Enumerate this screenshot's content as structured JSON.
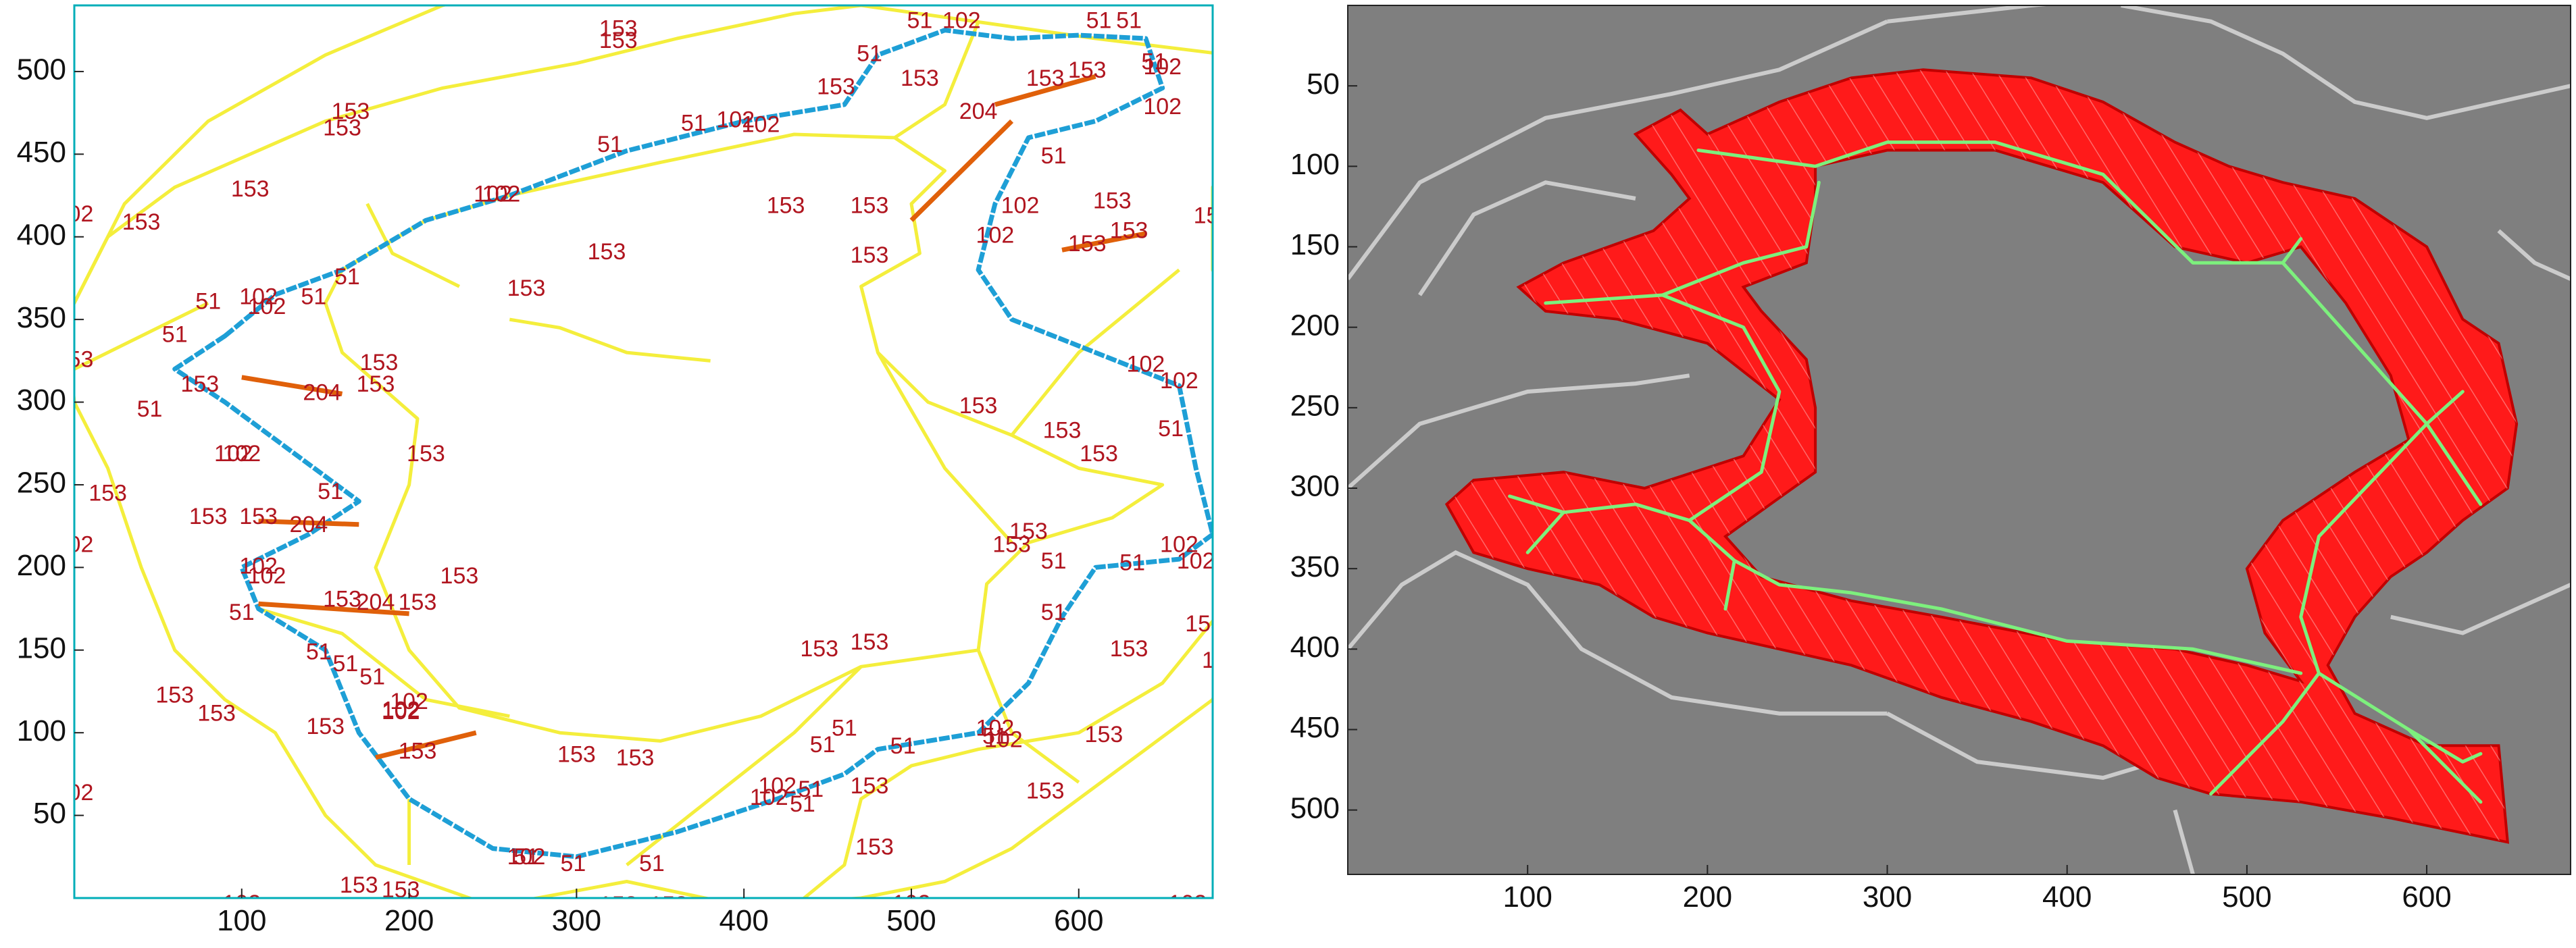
{
  "colors": {
    "background": "#ffffff",
    "left_frame": "#00aeb8",
    "left_plot_bg": "#ffffff",
    "contour_153": "#f4ee3c",
    "contour_51": "#1e9fd6",
    "contour_204": "#e0600a",
    "contour_label": "#b0151f",
    "right_plot_bg": "#7f7f7f",
    "ridge_line": "#d8d8d8",
    "fill_region": "#ff1a1a",
    "medial_axis": "#7df07d",
    "axis_text": "#111111"
  },
  "chart_data": [
    {
      "type": "contour",
      "description_panel": "left",
      "xlim": [
        0,
        680
      ],
      "ylim": [
        0,
        540
      ],
      "x_ticks": [
        "100",
        "200",
        "300",
        "400",
        "500",
        "600"
      ],
      "y_ticks": [
        "50",
        "100",
        "150",
        "200",
        "250",
        "300",
        "350",
        "400",
        "450",
        "500"
      ],
      "grid": false,
      "levels": [
        51,
        102,
        153,
        204
      ],
      "contour_labels": [
        {
          "text": "102",
          "x": 30,
          "y": 545
        },
        {
          "text": "102",
          "x": 190,
          "y": 545
        },
        {
          "text": "102",
          "x": 350,
          "y": 545
        },
        {
          "text": "153",
          "x": 325,
          "y": 525
        },
        {
          "text": "153",
          "x": 325,
          "y": 518
        },
        {
          "text": "153",
          "x": 165,
          "y": 475
        },
        {
          "text": "153",
          "x": 160,
          "y": 465
        },
        {
          "text": "51",
          "x": 475,
          "y": 510
        },
        {
          "text": "51",
          "x": 320,
          "y": 455
        },
        {
          "text": "51",
          "x": 370,
          "y": 468
        },
        {
          "text": "102",
          "x": 395,
          "y": 470
        },
        {
          "text": "102",
          "x": 410,
          "y": 467
        },
        {
          "text": "153",
          "x": 455,
          "y": 490
        },
        {
          "text": "153",
          "x": 505,
          "y": 495
        },
        {
          "text": "51",
          "x": 505,
          "y": 530
        },
        {
          "text": "102",
          "x": 530,
          "y": 530
        },
        {
          "text": "51",
          "x": 612,
          "y": 530
        },
        {
          "text": "51",
          "x": 630,
          "y": 530
        },
        {
          "text": "204",
          "x": 540,
          "y": 475
        },
        {
          "text": "153",
          "x": 580,
          "y": 495
        },
        {
          "text": "153",
          "x": 605,
          "y": 500
        },
        {
          "text": "51",
          "x": 645,
          "y": 505
        },
        {
          "text": "102",
          "x": 650,
          "y": 502
        },
        {
          "text": "102",
          "x": 650,
          "y": 478
        },
        {
          "text": "153",
          "x": 690,
          "y": 520
        },
        {
          "text": "153",
          "x": 105,
          "y": 428
        },
        {
          "text": "153",
          "x": 40,
          "y": 408
        },
        {
          "text": "102",
          "x": 0,
          "y": 413
        },
        {
          "text": "102",
          "x": 250,
          "y": 425
        },
        {
          "text": "102",
          "x": 255,
          "y": 425
        },
        {
          "text": "153",
          "x": 425,
          "y": 418
        },
        {
          "text": "153",
          "x": 475,
          "y": 418
        },
        {
          "text": "153",
          "x": 475,
          "y": 388
        },
        {
          "text": "51",
          "x": 585,
          "y": 448
        },
        {
          "text": "102",
          "x": 565,
          "y": 418
        },
        {
          "text": "102",
          "x": 550,
          "y": 400
        },
        {
          "text": "153",
          "x": 620,
          "y": 421
        },
        {
          "text": "153",
          "x": 630,
          "y": 403
        },
        {
          "text": "153",
          "x": 605,
          "y": 395
        },
        {
          "text": "153",
          "x": 680,
          "y": 412
        },
        {
          "text": "153",
          "x": 318,
          "y": 390
        },
        {
          "text": "153",
          "x": 270,
          "y": 368
        },
        {
          "text": "51",
          "x": 80,
          "y": 360
        },
        {
          "text": "102",
          "x": 110,
          "y": 363
        },
        {
          "text": "102",
          "x": 115,
          "y": 357
        },
        {
          "text": "51",
          "x": 143,
          "y": 363
        },
        {
          "text": "51",
          "x": 163,
          "y": 375
        },
        {
          "text": "102",
          "x": 690,
          "y": 368
        },
        {
          "text": "51",
          "x": 60,
          "y": 340
        },
        {
          "text": "153",
          "x": 182,
          "y": 323
        },
        {
          "text": "153",
          "x": 75,
          "y": 310
        },
        {
          "text": "204",
          "x": 148,
          "y": 305
        },
        {
          "text": "153",
          "x": 180,
          "y": 310
        },
        {
          "text": "51",
          "x": 45,
          "y": 295
        },
        {
          "text": "153",
          "x": 540,
          "y": 297
        },
        {
          "text": "153",
          "x": 590,
          "y": 282
        },
        {
          "text": "153",
          "x": 612,
          "y": 268
        },
        {
          "text": "102",
          "x": 640,
          "y": 322
        },
        {
          "text": "102",
          "x": 660,
          "y": 312
        },
        {
          "text": "153",
          "x": 690,
          "y": 312
        },
        {
          "text": "51",
          "x": 655,
          "y": 283
        },
        {
          "text": "102",
          "x": 95,
          "y": 268
        },
        {
          "text": "102",
          "x": 100,
          "y": 268
        },
        {
          "text": "153",
          "x": 210,
          "y": 268
        },
        {
          "text": "153",
          "x": 0,
          "y": 325
        },
        {
          "text": "153",
          "x": 20,
          "y": 244
        },
        {
          "text": "153",
          "x": 80,
          "y": 230
        },
        {
          "text": "153",
          "x": 110,
          "y": 230
        },
        {
          "text": "204",
          "x": 140,
          "y": 225
        },
        {
          "text": "51",
          "x": 153,
          "y": 245
        },
        {
          "text": "102",
          "x": 0,
          "y": 213
        },
        {
          "text": "153",
          "x": 570,
          "y": 221
        },
        {
          "text": "153",
          "x": 560,
          "y": 213
        },
        {
          "text": "102",
          "x": 660,
          "y": 213
        },
        {
          "text": "102",
          "x": 670,
          "y": 203
        },
        {
          "text": "153",
          "x": 700,
          "y": 220
        },
        {
          "text": "102",
          "x": 110,
          "y": 200
        },
        {
          "text": "102",
          "x": 115,
          "y": 194
        },
        {
          "text": "153",
          "x": 160,
          "y": 180
        },
        {
          "text": "204",
          "x": 180,
          "y": 178
        },
        {
          "text": "153",
          "x": 205,
          "y": 178
        },
        {
          "text": "153",
          "x": 230,
          "y": 194
        },
        {
          "text": "51",
          "x": 100,
          "y": 172
        },
        {
          "text": "51",
          "x": 146,
          "y": 148
        },
        {
          "text": "51",
          "x": 162,
          "y": 141
        },
        {
          "text": "51",
          "x": 178,
          "y": 133
        },
        {
          "text": "102",
          "x": 200,
          "y": 118
        },
        {
          "text": "102",
          "x": 195,
          "y": 113
        },
        {
          "text": "51",
          "x": 585,
          "y": 203
        },
        {
          "text": "51",
          "x": 632,
          "y": 202
        },
        {
          "text": "51",
          "x": 585,
          "y": 172
        },
        {
          "text": "153",
          "x": 445,
          "y": 150
        },
        {
          "text": "153",
          "x": 475,
          "y": 154
        },
        {
          "text": "153",
          "x": 630,
          "y": 150
        },
        {
          "text": "153",
          "x": 675,
          "y": 165
        },
        {
          "text": "102",
          "x": 685,
          "y": 143
        },
        {
          "text": "153",
          "x": 60,
          "y": 122
        },
        {
          "text": "153",
          "x": 85,
          "y": 111
        },
        {
          "text": "153",
          "x": 150,
          "y": 103
        },
        {
          "text": "102",
          "x": 195,
          "y": 112
        },
        {
          "text": "153",
          "x": 205,
          "y": 88
        },
        {
          "text": "153",
          "x": 300,
          "y": 86
        },
        {
          "text": "153",
          "x": 335,
          "y": 84
        },
        {
          "text": "51",
          "x": 460,
          "y": 102
        },
        {
          "text": "51",
          "x": 447,
          "y": 92
        },
        {
          "text": "51",
          "x": 495,
          "y": 91
        },
        {
          "text": "102",
          "x": 550,
          "y": 102
        },
        {
          "text": "102",
          "x": 555,
          "y": 95
        },
        {
          "text": "51",
          "x": 550,
          "y": 97
        },
        {
          "text": "153",
          "x": 615,
          "y": 98
        },
        {
          "text": "102",
          "x": 0,
          "y": 63
        },
        {
          "text": "102",
          "x": 420,
          "y": 67
        },
        {
          "text": "102",
          "x": 415,
          "y": 60
        },
        {
          "text": "51",
          "x": 435,
          "y": 56
        },
        {
          "text": "51",
          "x": 440,
          "y": 65
        },
        {
          "text": "153",
          "x": 475,
          "y": 67
        },
        {
          "text": "153",
          "x": 580,
          "y": 64
        },
        {
          "text": "51",
          "x": 270,
          "y": 24
        },
        {
          "text": "102",
          "x": 270,
          "y": 24
        },
        {
          "text": "51",
          "x": 298,
          "y": 20
        },
        {
          "text": "51",
          "x": 345,
          "y": 20
        },
        {
          "text": "153",
          "x": 478,
          "y": 30
        },
        {
          "text": "153",
          "x": 170,
          "y": 7
        },
        {
          "text": "153",
          "x": 195,
          "y": 4
        },
        {
          "text": "102",
          "x": 100,
          "y": -4
        },
        {
          "text": "153",
          "x": 325,
          "y": -5
        },
        {
          "text": "153",
          "x": 355,
          "y": -5
        },
        {
          "text": "102",
          "x": 500,
          "y": -4
        },
        {
          "text": "102",
          "x": 665,
          "y": -4
        }
      ]
    },
    {
      "type": "image",
      "description_panel": "right",
      "xlim": [
        0,
        680
      ],
      "ylim": [
        540,
        0
      ],
      "x_ticks": [
        "100",
        "200",
        "300",
        "400",
        "500",
        "600"
      ],
      "y_ticks": [
        "50",
        "100",
        "150",
        "200",
        "250",
        "300",
        "350",
        "400",
        "450",
        "500"
      ],
      "grid": false
    }
  ]
}
